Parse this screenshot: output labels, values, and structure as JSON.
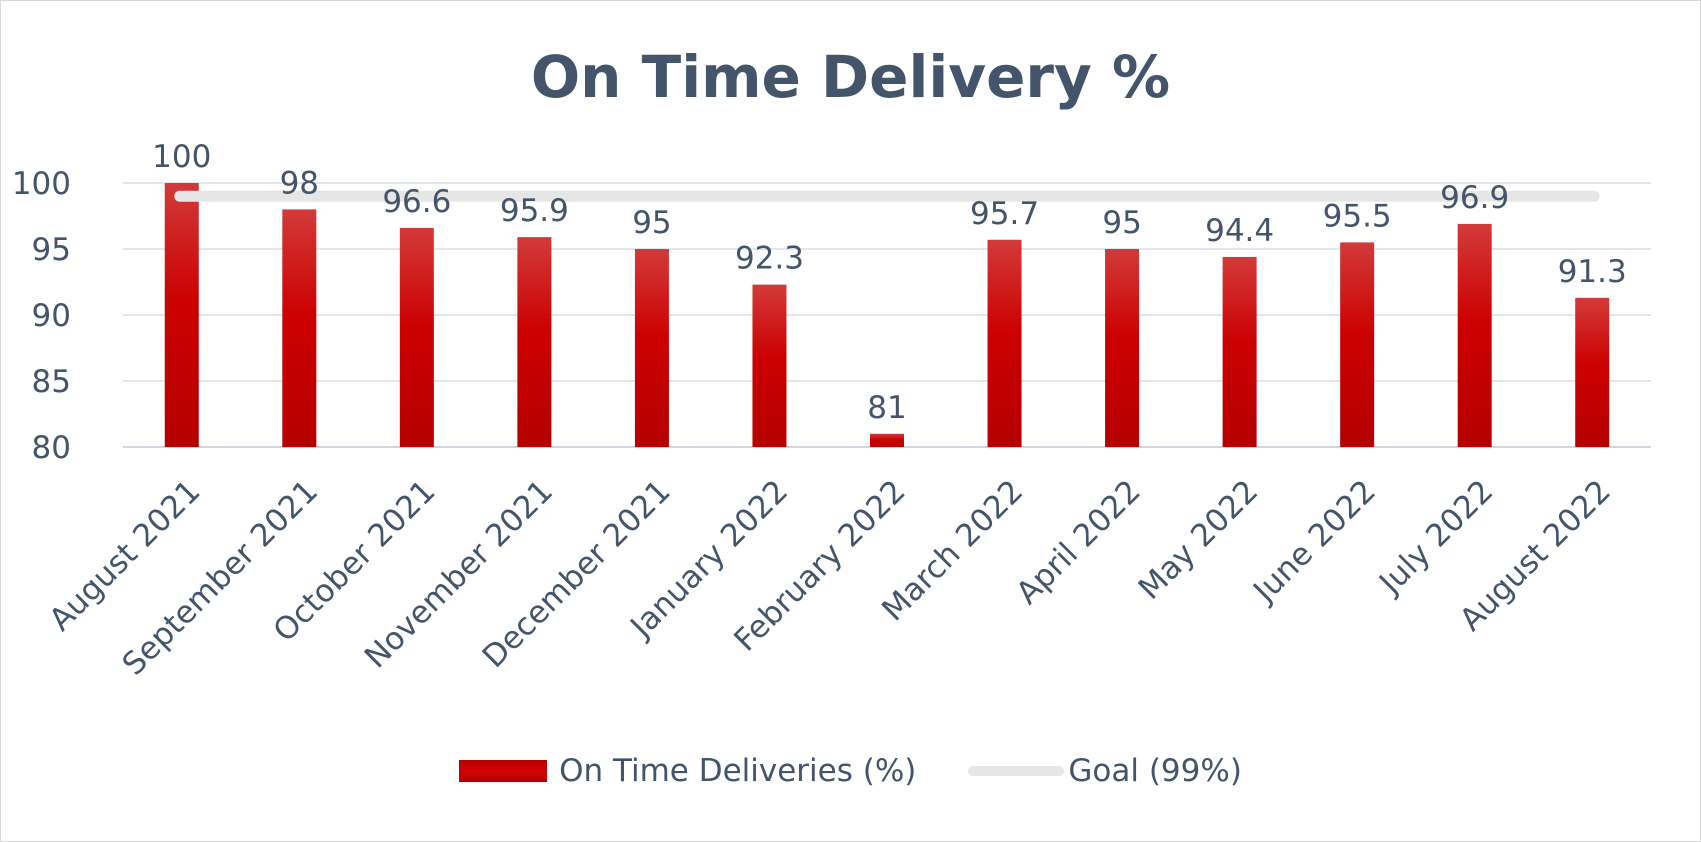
{
  "chart_data": {
    "type": "bar",
    "title": "On Time Delivery %",
    "categories": [
      "August 2021",
      "September 2021",
      "October 2021",
      "November 2021",
      "December 2021",
      "January 2022",
      "February 2022",
      "March 2022",
      "April 2022",
      "May 2022",
      "June 2022",
      "July 2022",
      "August 2022"
    ],
    "series": [
      {
        "name": "On Time Deliveries (%)",
        "type": "bar",
        "color": "#c00000",
        "values": [
          100,
          98,
          96.6,
          95.9,
          95,
          92.3,
          81,
          95.7,
          95,
          94.4,
          95.5,
          96.9,
          91.3
        ]
      },
      {
        "name": "Goal (99%)",
        "type": "line",
        "color": "#e6e6e6",
        "values": [
          99,
          99,
          99,
          99,
          99,
          99,
          99,
          99,
          99,
          99,
          99,
          99,
          99
        ]
      }
    ],
    "ylim": [
      80,
      100
    ],
    "yticks": [
      80,
      85,
      90,
      95,
      100
    ],
    "grid": true,
    "legend": "bottom"
  }
}
